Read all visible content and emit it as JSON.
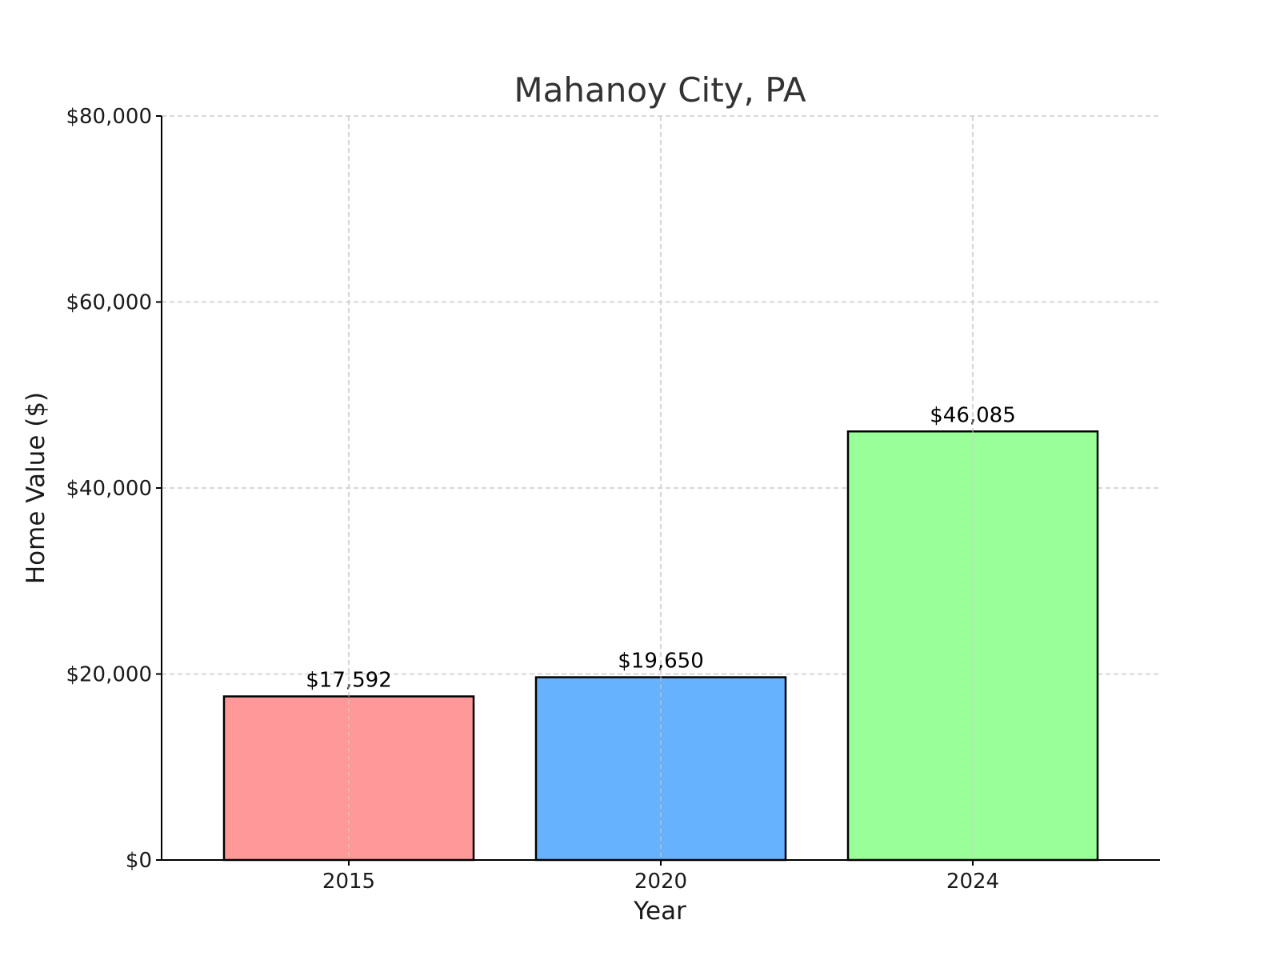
{
  "chart_data": {
    "type": "bar",
    "title": "Mahanoy City, PA",
    "xlabel": "Year",
    "ylabel": "Home Value ($)",
    "categories": [
      "2015",
      "2020",
      "2024"
    ],
    "values": [
      17592,
      19650,
      46085
    ],
    "value_labels": [
      "$17,592",
      "$19,650",
      "$46,085"
    ],
    "colors": [
      "#ff9999",
      "#66b2ff",
      "#99ff99"
    ],
    "ylim": [
      0,
      80000
    ],
    "yticks": [
      0,
      20000,
      40000,
      60000,
      80000
    ],
    "ytick_labels": [
      "$0",
      "$20,000",
      "$40,000",
      "$60,000",
      "$80,000"
    ],
    "grid": true
  }
}
